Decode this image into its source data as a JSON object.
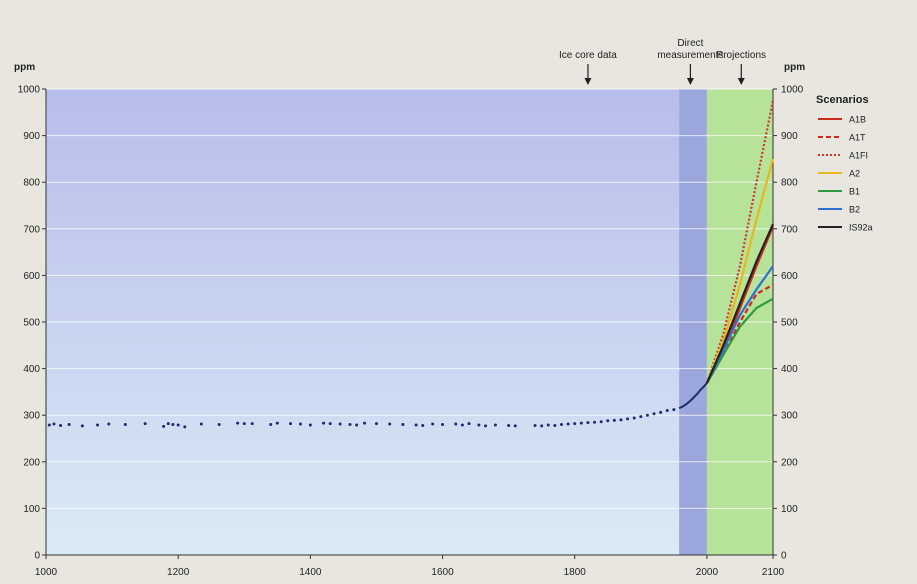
{
  "chart_data": {
    "type": "line",
    "xlim": [
      1000,
      2100
    ],
    "ylim": [
      0,
      1000
    ],
    "x_ticks": [
      1000,
      1200,
      1400,
      1600,
      1800,
      2000,
      2100
    ],
    "y_ticks": [
      0,
      100,
      200,
      300,
      400,
      500,
      600,
      700,
      800,
      900,
      1000
    ],
    "left_unit": "ppm",
    "right_unit": "ppm",
    "grid": true,
    "regions": [
      {
        "label": "Ice core data",
        "x_from": 1000,
        "x_to": 1958,
        "arrow_x": 1820,
        "color": "#bcc6ea"
      },
      {
        "label": "Direct measurements",
        "label_lines": [
          "Direct",
          "measurements"
        ],
        "x_from": 1958,
        "x_to": 2000,
        "arrow_x": 1975,
        "color": "#9aa6dc"
      },
      {
        "label": "Projections",
        "x_from": 2000,
        "x_to": 2100,
        "arrow_x": 2052,
        "color": "#b6e29a"
      }
    ],
    "ice_core_points": [
      [
        1005,
        279
      ],
      [
        1012,
        281
      ],
      [
        1022,
        278
      ],
      [
        1035,
        280
      ],
      [
        1055,
        277
      ],
      [
        1078,
        279
      ],
      [
        1095,
        281
      ],
      [
        1120,
        280
      ],
      [
        1150,
        282
      ],
      [
        1178,
        276
      ],
      [
        1185,
        282
      ],
      [
        1192,
        280
      ],
      [
        1200,
        279
      ],
      [
        1210,
        275
      ],
      [
        1235,
        281
      ],
      [
        1262,
        280
      ],
      [
        1290,
        283
      ],
      [
        1300,
        282
      ],
      [
        1312,
        282
      ],
      [
        1340,
        280
      ],
      [
        1350,
        283
      ],
      [
        1370,
        282
      ],
      [
        1385,
        281
      ],
      [
        1400,
        279
      ],
      [
        1420,
        283
      ],
      [
        1430,
        282
      ],
      [
        1445,
        281
      ],
      [
        1460,
        280
      ],
      [
        1470,
        279
      ],
      [
        1482,
        283
      ],
      [
        1500,
        282
      ],
      [
        1520,
        281
      ],
      [
        1540,
        280
      ],
      [
        1560,
        279
      ],
      [
        1570,
        278
      ],
      [
        1585,
        281
      ],
      [
        1600,
        280
      ],
      [
        1620,
        281
      ],
      [
        1630,
        279
      ],
      [
        1640,
        282
      ],
      [
        1655,
        279
      ],
      [
        1665,
        277
      ],
      [
        1680,
        279
      ],
      [
        1700,
        278
      ],
      [
        1710,
        277
      ],
      [
        1740,
        278
      ],
      [
        1750,
        277
      ],
      [
        1760,
        279
      ],
      [
        1770,
        278
      ],
      [
        1780,
        280
      ],
      [
        1790,
        281
      ],
      [
        1800,
        282
      ],
      [
        1810,
        283
      ],
      [
        1820,
        284
      ],
      [
        1830,
        285
      ],
      [
        1840,
        286
      ],
      [
        1850,
        288
      ],
      [
        1860,
        289
      ],
      [
        1870,
        290
      ],
      [
        1880,
        292
      ],
      [
        1890,
        294
      ],
      [
        1900,
        297
      ],
      [
        1910,
        300
      ],
      [
        1920,
        303
      ],
      [
        1930,
        306
      ],
      [
        1940,
        310
      ],
      [
        1950,
        312
      ]
    ],
    "measured": {
      "x": [
        1958,
        1965,
        1970,
        1975,
        1980,
        1985,
        1990,
        1995,
        2000
      ],
      "y": [
        315,
        320,
        325,
        331,
        338,
        345,
        354,
        361,
        369
      ]
    },
    "series": [
      {
        "name": "A1B",
        "color": "#cc2a1e",
        "dash": "solid",
        "x": [
          2000,
          2025,
          2050,
          2075,
          2100
        ],
        "y": [
          369,
          440,
          530,
          620,
          705
        ]
      },
      {
        "name": "A1T",
        "color": "#cc2a1e",
        "dash": "dashed",
        "x": [
          2000,
          2025,
          2050,
          2075,
          2100
        ],
        "y": [
          369,
          430,
          500,
          560,
          580
        ]
      },
      {
        "name": "A1FI",
        "color": "#d2362a",
        "dash": "dotted",
        "x": [
          2000,
          2025,
          2050,
          2075,
          2100
        ],
        "y": [
          369,
          475,
          620,
          800,
          975
        ]
      },
      {
        "name": "A2",
        "color": "#e8b81a",
        "dash": "solid",
        "x": [
          2000,
          2025,
          2050,
          2075,
          2100
        ],
        "y": [
          369,
          460,
          580,
          720,
          850
        ]
      },
      {
        "name": "B1",
        "color": "#2e9a3e",
        "dash": "solid",
        "x": [
          2000,
          2025,
          2050,
          2075,
          2100
        ],
        "y": [
          369,
          430,
          490,
          530,
          550
        ]
      },
      {
        "name": "B2",
        "color": "#2f6fd4",
        "dash": "solid",
        "x": [
          2000,
          2025,
          2050,
          2075,
          2100
        ],
        "y": [
          369,
          440,
          515,
          570,
          620
        ]
      },
      {
        "name": "IS92a",
        "color": "#222222",
        "dash": "solid",
        "x": [
          2000,
          2025,
          2050,
          2075,
          2100
        ],
        "y": [
          369,
          450,
          540,
          630,
          710
        ]
      }
    ],
    "legend": {
      "title": "Scenarios",
      "position": "top-right"
    }
  }
}
